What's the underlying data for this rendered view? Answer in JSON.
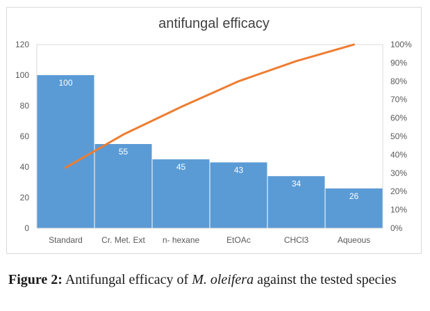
{
  "chart_data": {
    "type": "bar",
    "title": "antifungal efficacy",
    "categories": [
      "Standard",
      "Cr. Met. Ext",
      "n- hexane",
      "EtOAc",
      "CHCl3",
      "Aqueous"
    ],
    "values": [
      100,
      55,
      45,
      43,
      34,
      26
    ],
    "data_labels": [
      "100",
      "55",
      "45",
      "43",
      "34",
      "26"
    ],
    "ylim": [
      0,
      120
    ],
    "y_ticks": [
      "0",
      "20",
      "40",
      "60",
      "80",
      "100",
      "120"
    ],
    "y2_ticks": [
      "0%",
      "10%",
      "20%",
      "30%",
      "40%",
      "50%",
      "60%",
      "70%",
      "80%",
      "90%",
      "100%"
    ],
    "cumulative_percent": [
      33,
      51,
      66,
      80,
      91,
      100
    ],
    "grid": false,
    "colors": {
      "bar": "#5b9bd5",
      "line": "#ed7d31"
    }
  },
  "caption": {
    "label": "Figure 2:",
    "text_before": "Antifungal efficacy of",
    "species": "M. oleifera",
    "text_after": "against the tested species"
  }
}
